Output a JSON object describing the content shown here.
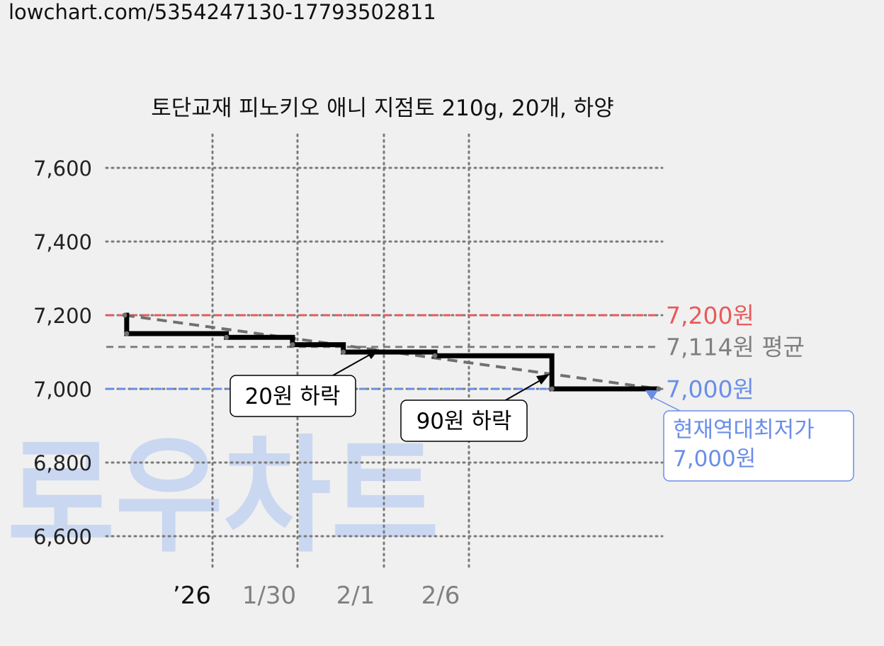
{
  "url": "lowchart.com/5354247130-17793502811",
  "watermark": "로우차트",
  "chart_data": {
    "type": "line",
    "title": "토단교재 피노키오 애니 지점토 210g, 20개, 하양",
    "ylim": [
      6600,
      7600
    ],
    "yticks": [
      {
        "value": 7600,
        "label": "7,600"
      },
      {
        "value": 7400,
        "label": "7,400"
      },
      {
        "value": 7200,
        "label": "7,200"
      },
      {
        "value": 7000,
        "label": "7,000"
      },
      {
        "value": 6800,
        "label": "6,800"
      },
      {
        "value": 6600,
        "label": "6,600"
      }
    ],
    "xticks": [
      "’26",
      "1/30",
      "2/1",
      "2/6"
    ],
    "series": [
      {
        "step": true,
        "values": [
          {
            "x": 0,
            "y": 7200
          },
          {
            "x": 0.04,
            "y": 7150
          },
          {
            "x": 2,
            "y": 7140
          },
          {
            "x": 3.3,
            "y": 7120
          },
          {
            "x": 4.3,
            "y": 7100
          },
          {
            "x": 6.1,
            "y": 7090
          },
          {
            "x": 8.4,
            "y": 7000
          },
          {
            "x": 10.5,
            "y": 7000
          }
        ]
      }
    ],
    "trend_line": {
      "from": 7200,
      "to": 7000
    },
    "reference_lines": [
      {
        "value": 7200,
        "label": "7,200원",
        "color": "#e85a5a"
      },
      {
        "value": 7114,
        "label": "7,114원 평균",
        "color": "#808080"
      },
      {
        "value": 7000,
        "label": "7,000원",
        "color": "#6a8ee8"
      }
    ],
    "annotations": [
      {
        "text": "20원 하락"
      },
      {
        "text": "90원 하락"
      }
    ],
    "callout": {
      "line1": "현재역대최저가",
      "line2": "7,000원",
      "color": "#6a8ee8"
    },
    "grid": true
  }
}
